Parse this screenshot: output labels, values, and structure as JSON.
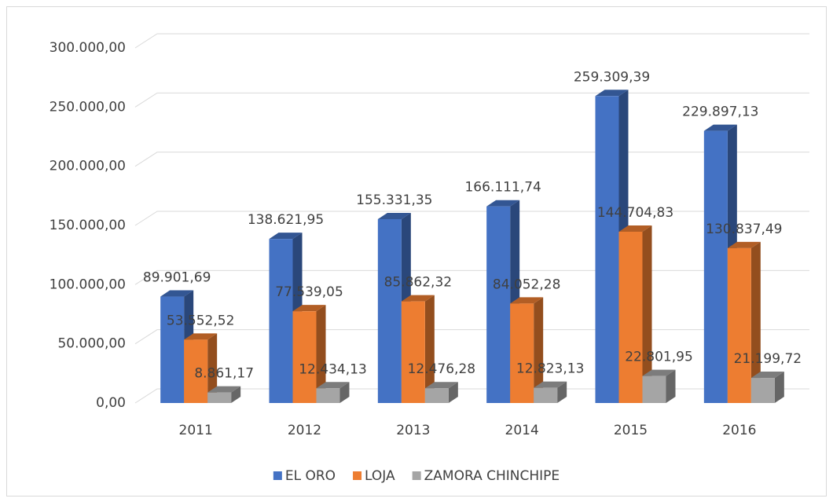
{
  "chart_data": {
    "type": "bar3d",
    "categories": [
      "2011",
      "2012",
      "2013",
      "2014",
      "2015",
      "2016"
    ],
    "series": [
      {
        "name": "EL ORO",
        "color": "#4472c4",
        "values": [
          89901.69,
          138621.95,
          155331.35,
          166111.74,
          259309.39,
          229897.13
        ],
        "value_labels": [
          "89.901,69",
          "138.621,95",
          "155.331,35",
          "166.111,74",
          "259.309,39",
          "229.897,13"
        ]
      },
      {
        "name": "LOJA",
        "color": "#ed7d31",
        "values": [
          53552.52,
          77539.05,
          85862.32,
          84052.28,
          144704.83,
          130837.49
        ],
        "value_labels": [
          "53.552,52",
          "77.539,05",
          "85.862,32",
          "84.052,28",
          "144.704,83",
          "130.837,49"
        ]
      },
      {
        "name": "ZAMORA CHINCHIPE",
        "color": "#a5a5a5",
        "values": [
          8861.17,
          12434.13,
          12476.28,
          12823.13,
          22801.95,
          21199.72
        ],
        "value_labels": [
          "8.861,17",
          "12.434,13",
          "12.476,28",
          "12.823,13",
          "22.801,95",
          "21.199,72"
        ]
      }
    ],
    "ylim": [
      0,
      300000
    ],
    "yticks": [
      {
        "value": 0,
        "label": "0,00"
      },
      {
        "value": 50000,
        "label": "50.000,00"
      },
      {
        "value": 100000,
        "label": "100.000,00"
      },
      {
        "value": 150000,
        "label": "150.000,00"
      },
      {
        "value": 200000,
        "label": "200.000,00"
      },
      {
        "value": 250000,
        "label": "250.000,00"
      },
      {
        "value": 300000,
        "label": "300.000,00"
      }
    ],
    "grid": true,
    "legend": "bottom"
  }
}
